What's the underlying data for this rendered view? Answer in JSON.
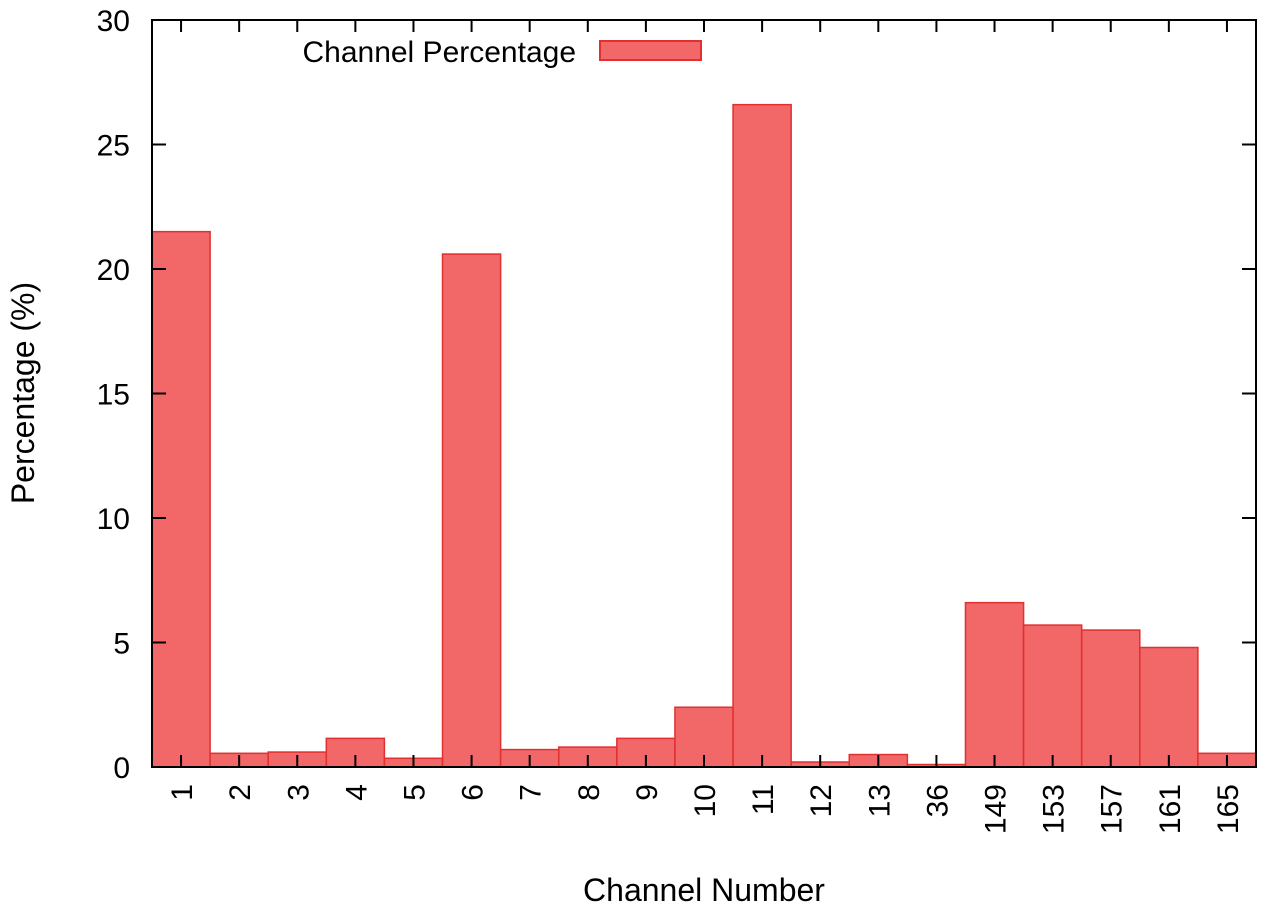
{
  "chart_data": {
    "type": "bar",
    "categories": [
      "1",
      "2",
      "3",
      "4",
      "5",
      "6",
      "7",
      "8",
      "9",
      "10",
      "11",
      "12",
      "13",
      "36",
      "149",
      "153",
      "157",
      "161",
      "165"
    ],
    "series": [
      {
        "name": "Channel Percentage",
        "color": "#f26767",
        "edge_color": "#e03030",
        "values": [
          21.5,
          0.55,
          0.6,
          1.15,
          0.35,
          20.6,
          0.7,
          0.8,
          1.15,
          2.4,
          26.6,
          0.2,
          0.5,
          0.1,
          6.6,
          5.7,
          5.5,
          4.8,
          0.55
        ]
      }
    ],
    "title": "",
    "xlabel": "Channel Number",
    "ylabel": "Percentage (%)",
    "ylim": [
      0,
      30
    ],
    "yticks": [
      "0",
      "5",
      "10",
      "15",
      "20",
      "25",
      "30"
    ],
    "grid": false,
    "legend_position": "top-left"
  }
}
